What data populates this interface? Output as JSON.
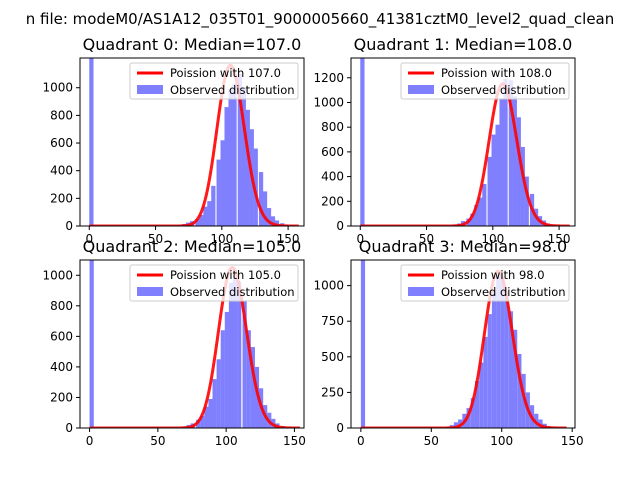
{
  "figure": {
    "suptitle": "n file: modeM0/AS1A12_035T01_9000005660_41381cztM0_level2_quad_clean"
  },
  "chart_data": [
    {
      "type": "histogram+line",
      "title": "Quadrant 0: Median=107.0",
      "xlim": [
        -7,
        162
      ],
      "ylim": [
        0,
        1215
      ],
      "xticks": [
        0,
        50,
        100,
        150
      ],
      "yticks": [
        0,
        200,
        400,
        600,
        800,
        1000
      ],
      "grid": false,
      "legend_position": "top-right",
      "series": [
        {
          "name": "Poission with 107.0",
          "kind": "line",
          "color": "#ff0000",
          "mean": 107.0,
          "x_range": [
            0,
            158
          ],
          "peak": 1160
        },
        {
          "name": "Observed distribution",
          "kind": "bar",
          "color": "#8080ff",
          "bin_width": 3.2,
          "bins": [
            {
              "x": 0,
              "y": 1215
            },
            {
              "x": 3.2,
              "y": 0
            },
            {
              "x": 67,
              "y": 5
            },
            {
              "x": 70,
              "y": 15
            },
            {
              "x": 73,
              "y": 25
            },
            {
              "x": 76,
              "y": 35
            },
            {
              "x": 80,
              "y": 50
            },
            {
              "x": 83,
              "y": 80
            },
            {
              "x": 86,
              "y": 140
            },
            {
              "x": 89,
              "y": 180
            },
            {
              "x": 92,
              "y": 290
            },
            {
              "x": 96,
              "y": 480
            },
            {
              "x": 99,
              "y": 620
            },
            {
              "x": 102,
              "y": 860
            },
            {
              "x": 105,
              "y": 990
            },
            {
              "x": 108,
              "y": 1030
            },
            {
              "x": 112,
              "y": 1100
            },
            {
              "x": 115,
              "y": 1000
            },
            {
              "x": 118,
              "y": 840
            },
            {
              "x": 121,
              "y": 700
            },
            {
              "x": 124,
              "y": 560
            },
            {
              "x": 128,
              "y": 390
            },
            {
              "x": 131,
              "y": 250
            },
            {
              "x": 134,
              "y": 130
            },
            {
              "x": 137,
              "y": 70
            },
            {
              "x": 140,
              "y": 40
            },
            {
              "x": 144,
              "y": 20
            },
            {
              "x": 147,
              "y": 8
            }
          ]
        }
      ]
    },
    {
      "type": "histogram+line",
      "title": "Quadrant 1: Median=108.0",
      "xlim": [
        -7,
        162
      ],
      "ylim": [
        0,
        1360
      ],
      "xticks": [
        0,
        50,
        100,
        150
      ],
      "yticks": [
        0,
        200,
        400,
        600,
        800,
        1000,
        1200
      ],
      "grid": false,
      "legend_position": "top-right",
      "series": [
        {
          "name": "Poission with 108.0",
          "kind": "line",
          "color": "#ff0000",
          "mean": 108.0,
          "x_range": [
            0,
            158
          ],
          "peak": 1150
        },
        {
          "name": "Observed distribution",
          "kind": "bar",
          "color": "#8080ff",
          "bin_width": 3.2,
          "bins": [
            {
              "x": 0,
              "y": 1360
            },
            {
              "x": 3.2,
              "y": 0
            },
            {
              "x": 70,
              "y": 10
            },
            {
              "x": 73,
              "y": 20
            },
            {
              "x": 76,
              "y": 40
            },
            {
              "x": 80,
              "y": 60
            },
            {
              "x": 83,
              "y": 100
            },
            {
              "x": 86,
              "y": 170
            },
            {
              "x": 89,
              "y": 230
            },
            {
              "x": 92,
              "y": 340
            },
            {
              "x": 96,
              "y": 560
            },
            {
              "x": 99,
              "y": 740
            },
            {
              "x": 102,
              "y": 820
            },
            {
              "x": 105,
              "y": 1030
            },
            {
              "x": 108,
              "y": 1190
            },
            {
              "x": 112,
              "y": 1180
            },
            {
              "x": 115,
              "y": 1050
            },
            {
              "x": 118,
              "y": 880
            },
            {
              "x": 121,
              "y": 640
            },
            {
              "x": 124,
              "y": 400
            },
            {
              "x": 128,
              "y": 260
            },
            {
              "x": 131,
              "y": 140
            },
            {
              "x": 134,
              "y": 80
            },
            {
              "x": 137,
              "y": 45
            },
            {
              "x": 140,
              "y": 20
            },
            {
              "x": 144,
              "y": 8
            }
          ]
        }
      ]
    },
    {
      "type": "histogram+line",
      "title": "Quadrant 2: Median=105.0",
      "xlim": [
        -7,
        157
      ],
      "ylim": [
        0,
        1100
      ],
      "xticks": [
        0,
        50,
        100,
        150
      ],
      "yticks": [
        0,
        200,
        400,
        600,
        800,
        1000
      ],
      "grid": false,
      "legend_position": "top-right",
      "series": [
        {
          "name": "Poission with 105.0",
          "kind": "line",
          "color": "#ff0000",
          "mean": 105.0,
          "x_range": [
            0,
            154
          ],
          "peak": 1050
        },
        {
          "name": "Observed distribution",
          "kind": "bar",
          "color": "#8080ff",
          "bin_width": 3.1,
          "bins": [
            {
              "x": 0,
              "y": 1100
            },
            {
              "x": 3.1,
              "y": 0
            },
            {
              "x": 68,
              "y": 10
            },
            {
              "x": 71,
              "y": 20
            },
            {
              "x": 74,
              "y": 30
            },
            {
              "x": 78,
              "y": 55
            },
            {
              "x": 81,
              "y": 80
            },
            {
              "x": 84,
              "y": 140
            },
            {
              "x": 87,
              "y": 190
            },
            {
              "x": 90,
              "y": 320
            },
            {
              "x": 93,
              "y": 450
            },
            {
              "x": 96,
              "y": 640
            },
            {
              "x": 99,
              "y": 760
            },
            {
              "x": 102,
              "y": 950
            },
            {
              "x": 105,
              "y": 990
            },
            {
              "x": 108,
              "y": 960
            },
            {
              "x": 112,
              "y": 830
            },
            {
              "x": 115,
              "y": 640
            },
            {
              "x": 118,
              "y": 530
            },
            {
              "x": 121,
              "y": 400
            },
            {
              "x": 124,
              "y": 260
            },
            {
              "x": 127,
              "y": 150
            },
            {
              "x": 130,
              "y": 100
            },
            {
              "x": 133,
              "y": 60
            },
            {
              "x": 136,
              "y": 30
            },
            {
              "x": 140,
              "y": 12
            }
          ]
        }
      ]
    },
    {
      "type": "histogram+line",
      "title": "Quadrant 3: Median=98.0",
      "xlim": [
        -7,
        152
      ],
      "ylim": [
        0,
        1180
      ],
      "xticks": [
        0,
        50,
        100,
        150
      ],
      "yticks": [
        0,
        250,
        500,
        750,
        1000
      ],
      "grid": false,
      "legend_position": "top-right",
      "series": [
        {
          "name": "Poission with 98.0",
          "kind": "line",
          "color": "#ff0000",
          "mean": 98.0,
          "x_range": [
            0,
            146
          ],
          "peak": 1100
        },
        {
          "name": "Observed distribution",
          "kind": "bar",
          "color": "#8080ff",
          "bin_width": 3.0,
          "bins": [
            {
              "x": 0,
              "y": 1180
            },
            {
              "x": 3,
              "y": 0
            },
            {
              "x": 60,
              "y": 8
            },
            {
              "x": 63,
              "y": 20
            },
            {
              "x": 66,
              "y": 40
            },
            {
              "x": 69,
              "y": 60
            },
            {
              "x": 72,
              "y": 100
            },
            {
              "x": 75,
              "y": 140
            },
            {
              "x": 78,
              "y": 210
            },
            {
              "x": 81,
              "y": 330
            },
            {
              "x": 84,
              "y": 460
            },
            {
              "x": 87,
              "y": 640
            },
            {
              "x": 90,
              "y": 800
            },
            {
              "x": 93,
              "y": 960
            },
            {
              "x": 96,
              "y": 1080
            },
            {
              "x": 99,
              "y": 1060
            },
            {
              "x": 102,
              "y": 960
            },
            {
              "x": 105,
              "y": 820
            },
            {
              "x": 108,
              "y": 690
            },
            {
              "x": 111,
              "y": 520
            },
            {
              "x": 114,
              "y": 380
            },
            {
              "x": 117,
              "y": 250
            },
            {
              "x": 120,
              "y": 160
            },
            {
              "x": 123,
              "y": 100
            },
            {
              "x": 126,
              "y": 60
            },
            {
              "x": 129,
              "y": 30
            },
            {
              "x": 132,
              "y": 12
            }
          ]
        }
      ]
    }
  ]
}
